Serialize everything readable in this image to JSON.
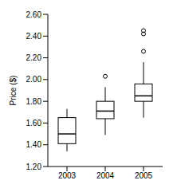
{
  "chart_data": {
    "type": "box",
    "y_label": "Price ($)",
    "categories": [
      "2003",
      "2004",
      "2005"
    ],
    "min": [
      1.34,
      1.49,
      1.65
    ],
    "q1": [
      1.41,
      1.64,
      1.8
    ],
    "median": [
      1.5,
      1.71,
      1.85
    ],
    "q3": [
      1.65,
      1.8,
      1.96
    ],
    "max": [
      1.73,
      1.93,
      2.16
    ],
    "outliers": [
      [],
      [
        2.03
      ],
      [
        2.26,
        2.42,
        2.45
      ]
    ],
    "ylim": [
      1.2,
      2.6
    ],
    "yticks": [
      {
        "value": 1.2,
        "label": "1.20"
      },
      {
        "value": 1.4,
        "label": "1.40"
      },
      {
        "value": 1.6,
        "label": "1.60"
      },
      {
        "value": 1.8,
        "label": "1.80"
      },
      {
        "value": 2.0,
        "label": "2.00"
      },
      {
        "value": 2.2,
        "label": "2.20"
      },
      {
        "value": 2.4,
        "label": "2.40"
      },
      {
        "value": 2.6,
        "label": "2.60"
      }
    ],
    "color": "#000000"
  }
}
